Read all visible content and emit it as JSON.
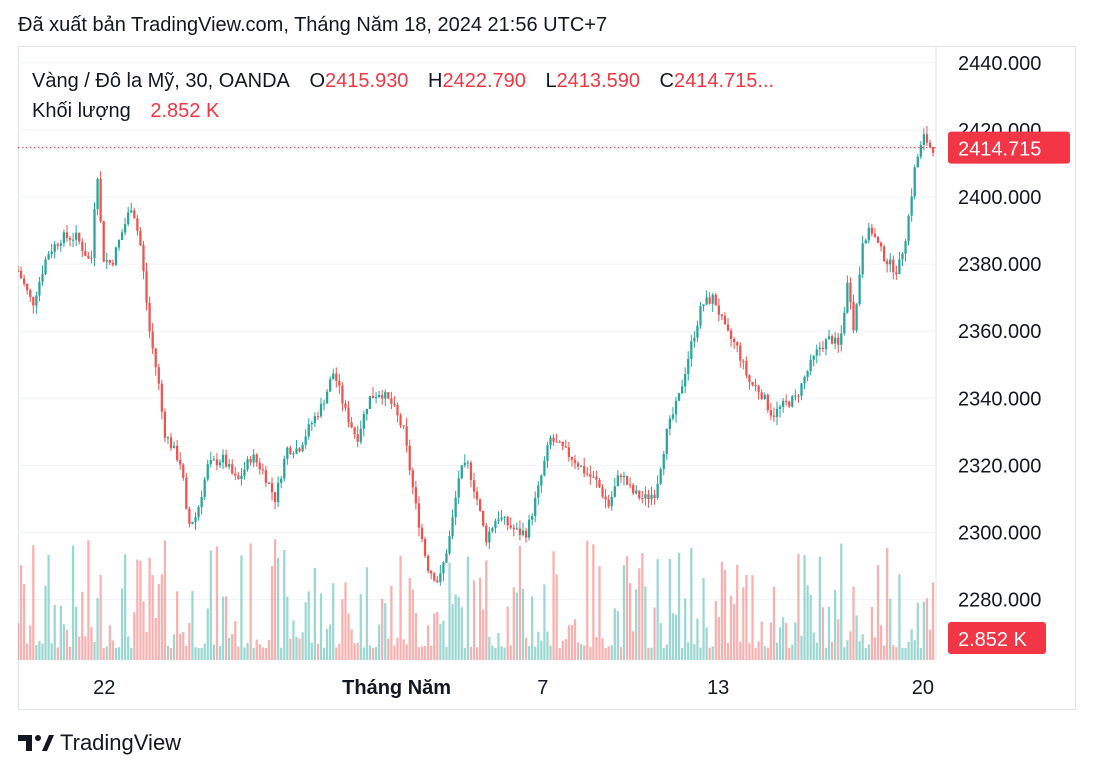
{
  "header": {
    "published": "Đã xuất bản TradingView.com, Tháng Năm 18, 2024 21:56 UTC+7"
  },
  "legend": {
    "symbol": "Vàng / Đô la Mỹ, 30, OANDA",
    "o_label": "O",
    "o_value": "2415.930",
    "h_label": "H",
    "h_value": "2422.790",
    "l_label": "L",
    "l_value": "2413.590",
    "c_label": "C",
    "c_value": "2414.715...",
    "volume_label": "Khối lượng",
    "volume_value": "2.852 K"
  },
  "badges": {
    "price": "2414.715",
    "volume": "2.852 K"
  },
  "footer": {
    "brand": "TradingView"
  },
  "colors": {
    "up": "#26a69a",
    "down": "#ef5350",
    "accent": "#f23645",
    "grid": "#f0f3fa"
  },
  "chart_data": {
    "type": "line",
    "title": "Vàng / Đô la Mỹ, 30, OANDA",
    "y_ticks": [
      "2440.000",
      "2420.000",
      "2400.000",
      "2380.000",
      "2360.000",
      "2340.000",
      "2320.000",
      "2300.000",
      "2280.000"
    ],
    "ylim": [
      2262,
      2445
    ],
    "x_ticks": [
      {
        "label": "22",
        "x": 2.95
      },
      {
        "label": "Tháng Năm",
        "x": 12.95
      },
      {
        "label": "7",
        "x": 17.95
      },
      {
        "label": "13",
        "x": 23.95
      },
      {
        "label": "20",
        "x": 30.95
      }
    ],
    "xlim": [
      0,
      31.4
    ],
    "last_price": 2414.715,
    "series": [
      {
        "values": [
          [
            0.0,
            2378
          ],
          [
            0.5,
            2368
          ],
          [
            1.0,
            2383
          ],
          [
            1.5,
            2388
          ],
          [
            2.0,
            2388
          ],
          [
            2.5,
            2380
          ],
          [
            2.7,
            2410
          ],
          [
            2.9,
            2382
          ],
          [
            3.2,
            2380
          ],
          [
            3.5,
            2388
          ],
          [
            3.9,
            2398
          ],
          [
            4.2,
            2385
          ],
          [
            4.5,
            2360
          ],
          [
            4.8,
            2345
          ],
          [
            5.0,
            2330
          ],
          [
            5.3,
            2325
          ],
          [
            5.6,
            2320
          ],
          [
            5.8,
            2302
          ],
          [
            6.1,
            2305
          ],
          [
            6.5,
            2320
          ],
          [
            7.0,
            2322
          ],
          [
            7.5,
            2315
          ],
          [
            8.0,
            2323
          ],
          [
            8.4,
            2318
          ],
          [
            8.8,
            2310
          ],
          [
            9.2,
            2325
          ],
          [
            9.6,
            2325
          ],
          [
            10.0,
            2332
          ],
          [
            10.4,
            2338
          ],
          [
            10.8,
            2348
          ],
          [
            11.2,
            2336
          ],
          [
            11.6,
            2328
          ],
          [
            12.0,
            2340
          ],
          [
            12.4,
            2342
          ],
          [
            12.8,
            2338
          ],
          [
            13.2,
            2330
          ],
          [
            13.6,
            2308
          ],
          [
            14.0,
            2290
          ],
          [
            14.4,
            2285
          ],
          [
            14.8,
            2300
          ],
          [
            15.1,
            2318
          ],
          [
            15.4,
            2320
          ],
          [
            15.7,
            2310
          ],
          [
            16.0,
            2298
          ],
          [
            16.4,
            2305
          ],
          [
            16.8,
            2302
          ],
          [
            17.1,
            2300
          ],
          [
            17.4,
            2300
          ],
          [
            17.8,
            2313
          ],
          [
            18.2,
            2328
          ],
          [
            18.6,
            2325
          ],
          [
            19.0,
            2322
          ],
          [
            19.4,
            2318
          ],
          [
            19.8,
            2315
          ],
          [
            20.2,
            2308
          ],
          [
            20.6,
            2318
          ],
          [
            21.0,
            2312
          ],
          [
            21.4,
            2310
          ],
          [
            21.8,
            2312
          ],
          [
            22.2,
            2330
          ],
          [
            22.6,
            2340
          ],
          [
            23.0,
            2355
          ],
          [
            23.4,
            2368
          ],
          [
            23.8,
            2370
          ],
          [
            24.2,
            2360
          ],
          [
            24.6,
            2355
          ],
          [
            25.0,
            2345
          ],
          [
            25.4,
            2342
          ],
          [
            25.8,
            2335
          ],
          [
            26.2,
            2338
          ],
          [
            26.6,
            2340
          ],
          [
            27.0,
            2348
          ],
          [
            27.4,
            2355
          ],
          [
            27.8,
            2358
          ],
          [
            28.1,
            2355
          ],
          [
            28.4,
            2376
          ],
          [
            28.6,
            2360
          ],
          [
            28.9,
            2388
          ],
          [
            29.2,
            2390
          ],
          [
            29.5,
            2384
          ],
          [
            29.8,
            2380
          ],
          [
            30.1,
            2378
          ],
          [
            30.4,
            2390
          ],
          [
            30.7,
            2410
          ],
          [
            31.0,
            2418
          ],
          [
            31.2,
            2415
          ],
          [
            31.3,
            2414.715
          ]
        ]
      }
    ]
  }
}
